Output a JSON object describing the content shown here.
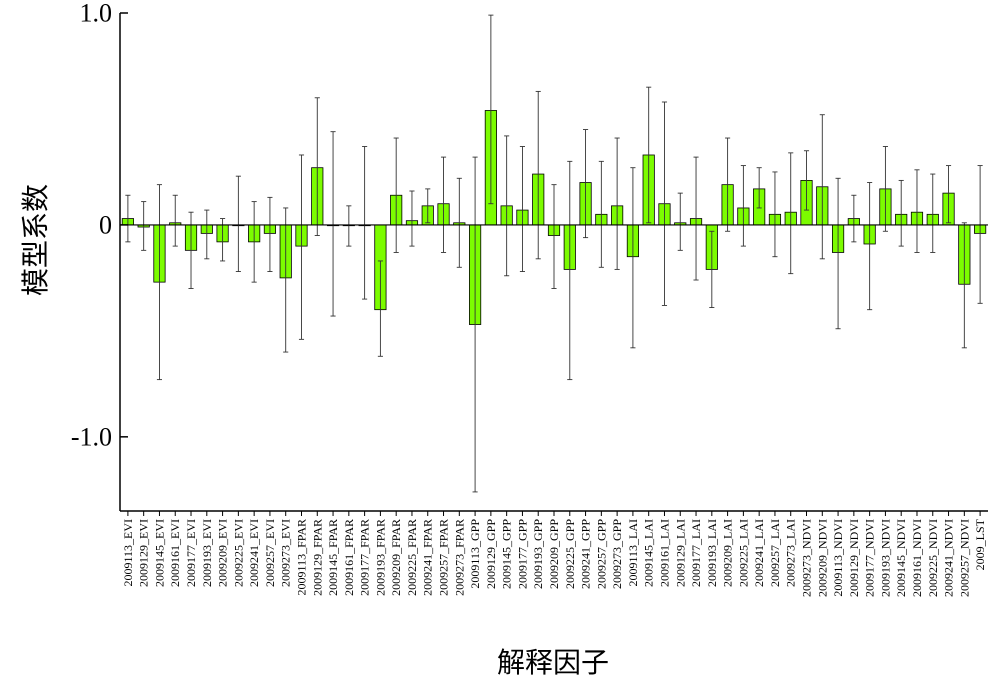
{
  "chart_data": {
    "type": "bar",
    "title": "",
    "xlabel": "解释因子",
    "ylabel": "模型系数",
    "ylim": [
      -1.35,
      1.0
    ],
    "yticks": [
      1.0,
      0,
      -1.0
    ],
    "ytick_labels": [
      "1.0",
      "0",
      "-1.0"
    ],
    "grid": false,
    "legend": "none",
    "bar_color": "#7CFC00",
    "bar_edge_color": "#000000",
    "categories": [
      "2009113_EVI",
      "2009129_EVI",
      "2009145_EVI",
      "2009161_EVI",
      "2009177_EVI",
      "2009193_EVI",
      "2009209_EVI",
      "2009225_EVI",
      "2009241_EVI",
      "2009257_EVI",
      "2009273_EVI",
      "2009113_FPAR",
      "2009129_FPAR",
      "2009145_FPAR",
      "2009161_FPAR",
      "2009177_FPAR",
      "2009193_FPAR",
      "2009209_FPAR",
      "2009225_FPAR",
      "2009241_FPAR",
      "2009257_FPAR",
      "2009273_FPAR",
      "2009113_GPP",
      "2009129_GPP",
      "2009145_GPP",
      "2009177_GPP",
      "2009193_GPP",
      "2009209_GPP",
      "2009225_GPP",
      "2009241_GPP",
      "2009257_GPP",
      "2009273_GPP",
      "2009113_LAI",
      "2009145_LAI",
      "2009161_LAI",
      "2009129_LAI",
      "2009177_LAI",
      "2009193_LAI",
      "2009209_LAI",
      "2009225_LAI",
      "2009241_LAI",
      "2009257_LAI",
      "2009273_LAI",
      "2009273_NDVI",
      "2009209_NDVI",
      "2009113_NDVI",
      "2009129_NDVI",
      "2009177_NDVI",
      "2009193_NDVI",
      "2009145_NDVI",
      "2009161_NDVI",
      "2009225_NDVI",
      "2009241_NDVI",
      "2009257_NDVI",
      "2009_LST"
    ],
    "values": [
      0.03,
      -0.01,
      -0.27,
      0.01,
      -0.12,
      -0.04,
      -0.08,
      0.0,
      -0.08,
      -0.04,
      -0.25,
      -0.1,
      0.27,
      0.0,
      0.0,
      0.0,
      -0.4,
      0.14,
      0.02,
      0.09,
      0.1,
      0.01,
      -0.47,
      0.54,
      0.09,
      0.07,
      0.24,
      -0.05,
      -0.21,
      0.2,
      0.05,
      0.09,
      -0.15,
      0.33,
      0.1,
      0.01,
      0.03,
      -0.21,
      0.19,
      0.08,
      0.17,
      0.05,
      0.06,
      0.21,
      0.18,
      -0.13,
      0.03,
      -0.09,
      0.17,
      0.05,
      0.06,
      0.05,
      0.15,
      -0.28,
      -0.04
    ],
    "error_low": [
      -0.08,
      -0.12,
      -0.73,
      -0.1,
      -0.3,
      -0.16,
      -0.17,
      -0.22,
      -0.27,
      -0.22,
      -0.6,
      -0.54,
      -0.05,
      -0.43,
      -0.1,
      -0.35,
      -0.62,
      -0.13,
      -0.1,
      0.01,
      -0.13,
      -0.2,
      -1.26,
      0.1,
      -0.24,
      -0.22,
      -0.16,
      -0.3,
      -0.73,
      -0.06,
      -0.2,
      -0.21,
      -0.58,
      0.01,
      -0.38,
      -0.12,
      -0.26,
      -0.39,
      -0.03,
      -0.1,
      0.08,
      -0.15,
      -0.23,
      0.07,
      -0.16,
      -0.49,
      -0.08,
      -0.4,
      -0.03,
      -0.1,
      -0.13,
      -0.13,
      0.01,
      -0.58,
      -0.37
    ],
    "error_high": [
      0.14,
      0.11,
      0.19,
      0.14,
      0.06,
      0.07,
      0.03,
      0.23,
      0.11,
      0.13,
      0.08,
      0.33,
      0.6,
      0.44,
      0.09,
      0.37,
      -0.17,
      0.41,
      0.16,
      0.17,
      0.32,
      0.22,
      0.32,
      0.99,
      0.42,
      0.37,
      0.63,
      0.19,
      0.3,
      0.45,
      0.3,
      0.41,
      0.27,
      0.65,
      0.58,
      0.15,
      0.32,
      -0.03,
      0.41,
      0.28,
      0.27,
      0.25,
      0.34,
      0.35,
      0.52,
      0.22,
      0.14,
      0.2,
      0.37,
      0.21,
      0.26,
      0.24,
      0.28,
      0.01,
      0.28
    ]
  }
}
